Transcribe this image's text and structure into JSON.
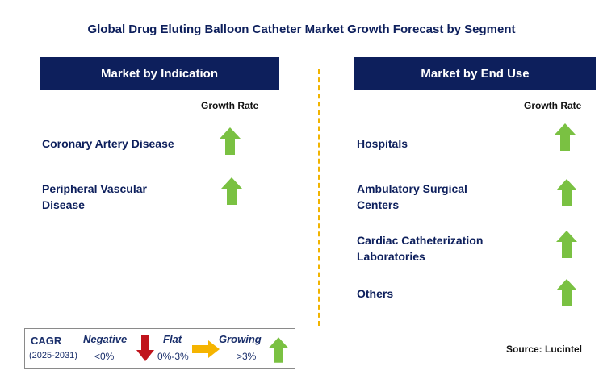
{
  "title": "Global Drug Eluting Balloon Catheter Market Growth Forecast by Segment",
  "left_panel": {
    "header": "Market by Indication",
    "growth_label": "Growth Rate",
    "items": [
      {
        "line1": "Coronary Artery Disease",
        "line2": "",
        "trend": "growing"
      },
      {
        "line1": "Peripheral Vascular",
        "line2": "Disease",
        "trend": "growing"
      }
    ]
  },
  "right_panel": {
    "header": "Market by End Use",
    "growth_label": "Growth Rate",
    "items": [
      {
        "line1": "Hospitals",
        "line2": "",
        "trend": "growing"
      },
      {
        "line1": "Ambulatory Surgical",
        "line2": "Centers",
        "trend": "growing"
      },
      {
        "line1": "Cardiac Catheterization",
        "line2": "Laboratories",
        "trend": "growing"
      },
      {
        "line1": "Others",
        "line2": "",
        "trend": "growing"
      }
    ]
  },
  "legend": {
    "cagr_label": "CAGR",
    "period": "(2025-2031)",
    "negative_label": "Negative",
    "negative_value": "<0%",
    "flat_label": "Flat",
    "flat_value": "0%-3%",
    "growing_label": "Growing",
    "growing_value": ">3%"
  },
  "source": "Source: Lucintel",
  "colors": {
    "navy": "#0d1f5c",
    "growing": "#7ac142",
    "negative": "#c0141c",
    "flat": "#f5b400"
  }
}
